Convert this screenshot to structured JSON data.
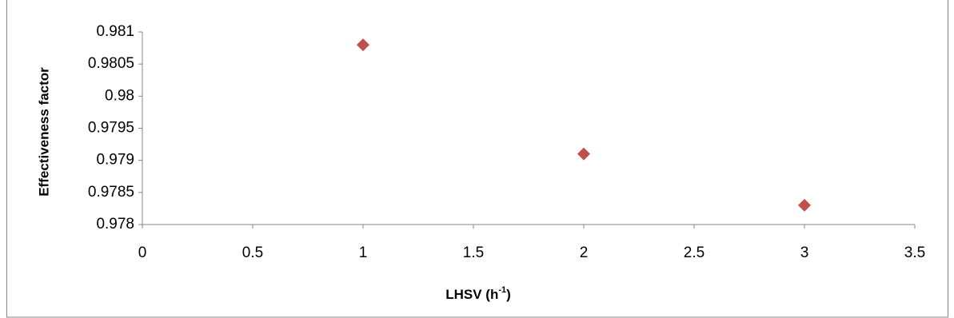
{
  "chart_data": {
    "type": "scatter",
    "x_label": [
      "LHSV (h",
      "-1",
      ")"
    ],
    "y_label": "Effectiveness factor",
    "x": [
      1,
      2,
      3
    ],
    "series": [
      {
        "color": "#c0504d",
        "values": [
          0.9808,
          0.9791,
          0.9783
        ]
      }
    ],
    "xlim": [
      0,
      3.5
    ],
    "xticks": [
      0,
      0.5,
      1,
      1.5,
      2,
      2.5,
      3,
      3.5
    ],
    "ylim": [
      0.978,
      0.981
    ],
    "yticks": [
      0.978,
      0.9785,
      0.979,
      0.9795,
      0.98,
      0.9805,
      0.981
    ]
  }
}
